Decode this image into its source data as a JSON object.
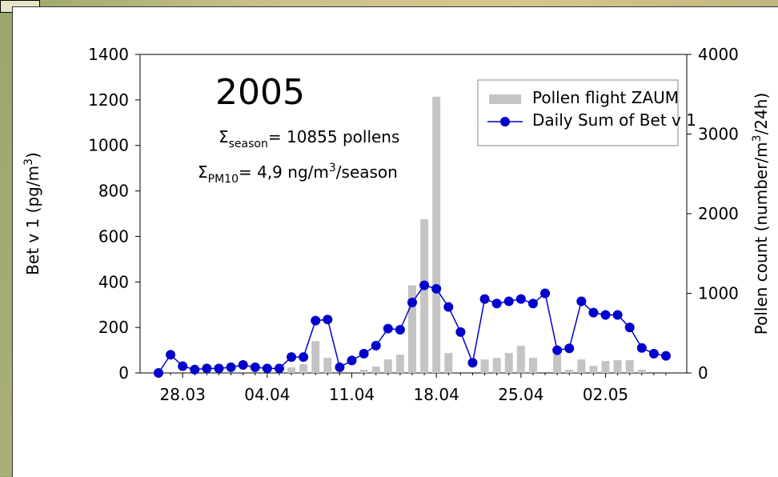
{
  "chart_data": {
    "type": "combo",
    "annotations": [
      [
        "2005"
      ],
      [
        "Σ",
        "season",
        "= 10855 pollens"
      ],
      [
        "Σ",
        "PM10",
        "= 4,9  ng/m",
        "3",
        "/season"
      ]
    ],
    "ylabel": [
      "Bet v 1 (pg/m",
      "3",
      ")"
    ],
    "y2label": [
      "Pollen count (number/m",
      "3",
      "/24h)"
    ],
    "categories": [
      null,
      null,
      "28.03",
      null,
      null,
      null,
      null,
      null,
      null,
      "04.04",
      null,
      null,
      null,
      null,
      null,
      null,
      "11.04",
      null,
      null,
      null,
      null,
      null,
      null,
      "18.04",
      null,
      null,
      null,
      null,
      null,
      null,
      "25.04",
      null,
      null,
      null,
      null,
      null,
      null,
      "02.05",
      null,
      null,
      null,
      null,
      null
    ],
    "ylim": [
      0,
      1400
    ],
    "yticks": [
      0,
      200,
      400,
      600,
      800,
      1000,
      1200,
      1400
    ],
    "y2lim": [
      0,
      4000
    ],
    "y2ticks": [
      0,
      1000,
      2000,
      3000,
      4000
    ],
    "legend": "top-right",
    "series": [
      {
        "name": "Pollen flight ZAUM",
        "type": "bar",
        "axis": "y2",
        "color": "#c4c4c4",
        "values": [
          0,
          0,
          0,
          0,
          0,
          0,
          0,
          0,
          0,
          0,
          0,
          70,
          110,
          400,
          190,
          0,
          0,
          40,
          80,
          170,
          230,
          1100,
          1930,
          3470,
          250,
          0,
          0,
          170,
          190,
          250,
          340,
          190,
          0,
          230,
          40,
          170,
          90,
          150,
          160,
          160,
          40,
          0,
          0
        ]
      },
      {
        "name": "Daily Sum of Bet v 1",
        "type": "line",
        "axis": "y",
        "color": "#0000cc",
        "values": [
          0,
          80,
          30,
          15,
          20,
          20,
          25,
          35,
          25,
          20,
          20,
          70,
          70,
          230,
          235,
          25,
          55,
          85,
          120,
          195,
          190,
          310,
          385,
          370,
          290,
          180,
          45,
          325,
          305,
          315,
          325,
          305,
          350,
          100,
          108,
          315,
          265,
          255,
          255,
          200,
          110,
          85,
          75
        ]
      }
    ]
  }
}
